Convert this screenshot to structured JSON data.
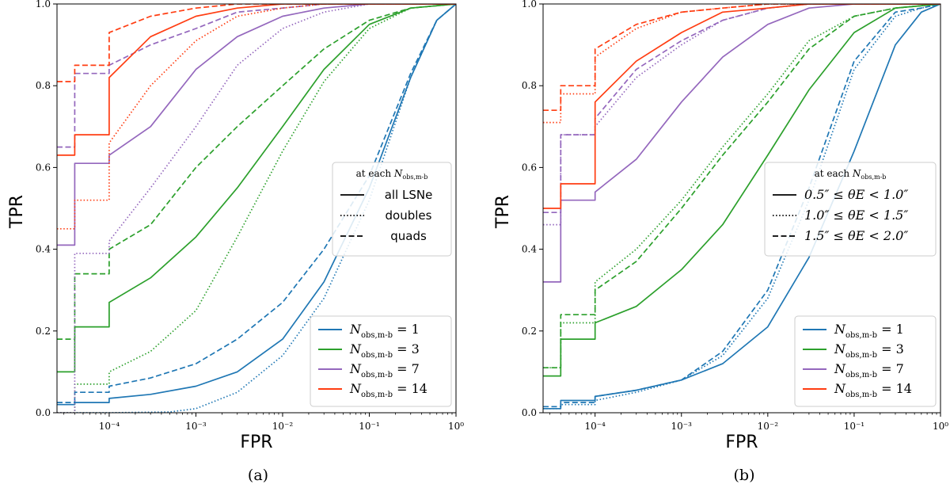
{
  "chart_data": [
    {
      "type": "line",
      "panel": "a",
      "caption": "(a)",
      "xlabel": "FPR",
      "ylabel": "TPR",
      "xscale": "log",
      "xlim": [
        2.5e-05,
        1.0
      ],
      "ylim": [
        0.0,
        1.0
      ],
      "xticks": [
        "10⁻⁴",
        "10⁻³",
        "10⁻²",
        "10⁻¹",
        "10⁰"
      ],
      "yticks": [
        "0.0",
        "0.2",
        "0.4",
        "0.6",
        "0.8",
        "1.0"
      ],
      "color_legend": {
        "placement": "lower right",
        "entries": [
          {
            "label": "Nobs,m-b = 1",
            "color": "#1f77b4"
          },
          {
            "label": "Nobs,m-b = 3",
            "color": "#2ca02c"
          },
          {
            "label": "Nobs,m-b = 7",
            "color": "#9467bd"
          },
          {
            "label": "Nobs,m-b = 14",
            "color": "#ff3d12"
          }
        ]
      },
      "style_legend": {
        "placement": "center right",
        "title": "at each Nobs,m-b",
        "entries": [
          {
            "label": "all LSNe",
            "dash": "solid"
          },
          {
            "label": "doubles",
            "dash": "dotted"
          },
          {
            "label": "quads",
            "dash": "dashed"
          }
        ]
      },
      "series": [
        {
          "name": "N=1 all LSNe",
          "color": "#1f77b4",
          "dash": "solid",
          "x": [
            2.5e-05,
            4e-05,
            0.0001,
            0.0003,
            0.001,
            0.003,
            0.01,
            0.03,
            0.1,
            0.3,
            0.6,
            1.0
          ],
          "y": [
            0.02,
            0.025,
            0.035,
            0.045,
            0.065,
            0.1,
            0.18,
            0.32,
            0.55,
            0.82,
            0.96,
            1.0
          ]
        },
        {
          "name": "N=1 doubles",
          "color": "#1f77b4",
          "dash": "dotted",
          "x": [
            2.5e-05,
            0.0001,
            0.0005,
            0.001,
            0.003,
            0.01,
            0.03,
            0.1,
            0.3,
            0.6,
            1.0
          ],
          "y": [
            0.0,
            0.0,
            0.002,
            0.01,
            0.05,
            0.14,
            0.28,
            0.52,
            0.82,
            0.96,
            1.0
          ]
        },
        {
          "name": "N=1 quads",
          "color": "#1f77b4",
          "dash": "dashed",
          "x": [
            2.5e-05,
            4e-05,
            0.0001,
            0.0003,
            0.001,
            0.003,
            0.01,
            0.03,
            0.1,
            0.3,
            0.6,
            1.0
          ],
          "y": [
            0.025,
            0.05,
            0.065,
            0.085,
            0.12,
            0.18,
            0.27,
            0.4,
            0.58,
            0.83,
            0.96,
            1.0
          ]
        },
        {
          "name": "N=3 all LSNe",
          "color": "#2ca02c",
          "dash": "solid",
          "x": [
            2.5e-05,
            4e-05,
            0.0001,
            0.0003,
            0.001,
            0.003,
            0.01,
            0.03,
            0.1,
            0.3,
            1.0
          ],
          "y": [
            0.1,
            0.21,
            0.27,
            0.33,
            0.43,
            0.55,
            0.7,
            0.84,
            0.95,
            0.99,
            1.0
          ]
        },
        {
          "name": "N=3 doubles",
          "color": "#2ca02c",
          "dash": "dotted",
          "x": [
            2.5e-05,
            4e-05,
            0.0001,
            0.0003,
            0.001,
            0.003,
            0.01,
            0.03,
            0.1,
            0.3,
            1.0
          ],
          "y": [
            0.0,
            0.07,
            0.1,
            0.15,
            0.25,
            0.43,
            0.64,
            0.81,
            0.94,
            0.99,
            1.0
          ]
        },
        {
          "name": "N=3 quads",
          "color": "#2ca02c",
          "dash": "dashed",
          "x": [
            2.5e-05,
            4e-05,
            0.0001,
            0.0003,
            0.001,
            0.003,
            0.01,
            0.03,
            0.1,
            0.3,
            1.0
          ],
          "y": [
            0.18,
            0.34,
            0.4,
            0.46,
            0.6,
            0.7,
            0.8,
            0.89,
            0.96,
            0.99,
            1.0
          ]
        },
        {
          "name": "N=7 all LSNe",
          "color": "#9467bd",
          "dash": "solid",
          "x": [
            2.5e-05,
            4e-05,
            0.0001,
            0.0003,
            0.001,
            0.003,
            0.01,
            0.03,
            0.1,
            0.3,
            1.0
          ],
          "y": [
            0.41,
            0.61,
            0.63,
            0.7,
            0.84,
            0.92,
            0.97,
            0.99,
            1.0,
            1.0,
            1.0
          ]
        },
        {
          "name": "N=7 doubles",
          "color": "#9467bd",
          "dash": "dotted",
          "x": [
            2.5e-05,
            4e-05,
            0.0001,
            0.0003,
            0.001,
            0.003,
            0.01,
            0.03,
            0.1,
            0.3,
            1.0
          ],
          "y": [
            0.0,
            0.39,
            0.42,
            0.55,
            0.7,
            0.85,
            0.94,
            0.98,
            1.0,
            1.0,
            1.0
          ]
        },
        {
          "name": "N=7 quads",
          "color": "#9467bd",
          "dash": "dashed",
          "x": [
            2.5e-05,
            4e-05,
            0.0001,
            0.0003,
            0.001,
            0.003,
            0.01,
            0.03,
            0.1,
            0.3,
            1.0
          ],
          "y": [
            0.65,
            0.83,
            0.85,
            0.9,
            0.94,
            0.98,
            0.99,
            1.0,
            1.0,
            1.0,
            1.0
          ]
        },
        {
          "name": "N=14 all LSNe",
          "color": "#ff3d12",
          "dash": "solid",
          "x": [
            2.5e-05,
            4e-05,
            0.0001,
            0.0003,
            0.001,
            0.003,
            0.01,
            0.03,
            0.1,
            0.3,
            1.0
          ],
          "y": [
            0.63,
            0.68,
            0.82,
            0.92,
            0.97,
            0.99,
            1.0,
            1.0,
            1.0,
            1.0,
            1.0
          ]
        },
        {
          "name": "N=14 doubles",
          "color": "#ff3d12",
          "dash": "dotted",
          "x": [
            2.5e-05,
            4e-05,
            0.0001,
            0.0003,
            0.001,
            0.003,
            0.01,
            0.03,
            0.1,
            0.3,
            1.0
          ],
          "y": [
            0.45,
            0.52,
            0.66,
            0.8,
            0.91,
            0.97,
            0.99,
            1.0,
            1.0,
            1.0,
            1.0
          ]
        },
        {
          "name": "N=14 quads",
          "color": "#ff3d12",
          "dash": "dashed",
          "x": [
            2.5e-05,
            4e-05,
            0.0001,
            0.0003,
            0.001,
            0.003,
            0.01,
            0.03,
            0.1,
            0.3,
            1.0
          ],
          "y": [
            0.81,
            0.85,
            0.93,
            0.97,
            0.99,
            1.0,
            1.0,
            1.0,
            1.0,
            1.0,
            1.0
          ]
        }
      ]
    },
    {
      "type": "line",
      "panel": "b",
      "caption": "(b)",
      "xlabel": "FPR",
      "ylabel": "TPR",
      "xscale": "log",
      "xlim": [
        2.5e-05,
        1.0
      ],
      "ylim": [
        0.0,
        1.0
      ],
      "xticks": [
        "10⁻⁴",
        "10⁻³",
        "10⁻²",
        "10⁻¹",
        "10⁰"
      ],
      "yticks": [
        "0.0",
        "0.2",
        "0.4",
        "0.6",
        "0.8",
        "1.0"
      ],
      "color_legend": {
        "placement": "lower right",
        "entries": [
          {
            "label": "Nobs,m-b = 1",
            "color": "#1f77b4"
          },
          {
            "label": "Nobs,m-b = 3",
            "color": "#2ca02c"
          },
          {
            "label": "Nobs,m-b = 7",
            "color": "#9467bd"
          },
          {
            "label": "Nobs,m-b = 14",
            "color": "#ff3d12"
          }
        ]
      },
      "style_legend": {
        "placement": "center right",
        "title": "at each Nobs,m-b",
        "entries": [
          {
            "label": "0.5″ ≤ θE < 1.0″",
            "dash": "solid"
          },
          {
            "label": "1.0″ ≤ θE < 1.5″",
            "dash": "dotted"
          },
          {
            "label": "1.5″ ≤ θE < 2.0″",
            "dash": "dashed"
          }
        ]
      },
      "series": [
        {
          "name": "N=1 0.5-1.0",
          "color": "#1f77b4",
          "dash": "solid",
          "x": [
            2.5e-05,
            4e-05,
            0.0001,
            0.0003,
            0.001,
            0.003,
            0.01,
            0.03,
            0.1,
            0.3,
            0.6,
            1.0
          ],
          "y": [
            0.01,
            0.03,
            0.04,
            0.055,
            0.08,
            0.12,
            0.21,
            0.38,
            0.64,
            0.9,
            0.98,
            1.0
          ]
        },
        {
          "name": "N=1 1.0-1.5",
          "color": "#1f77b4",
          "dash": "dotted",
          "x": [
            2.5e-05,
            4e-05,
            0.0001,
            0.0003,
            0.001,
            0.003,
            0.01,
            0.03,
            0.1,
            0.3,
            0.6,
            1.0
          ],
          "y": [
            0.01,
            0.02,
            0.03,
            0.05,
            0.08,
            0.14,
            0.28,
            0.52,
            0.84,
            0.97,
            0.99,
            1.0
          ]
        },
        {
          "name": "N=1 1.5-2.0",
          "color": "#1f77b4",
          "dash": "dashed",
          "x": [
            2.5e-05,
            4e-05,
            0.0001,
            0.0003,
            0.001,
            0.003,
            0.01,
            0.03,
            0.1,
            0.3,
            0.6,
            1.0
          ],
          "y": [
            0.015,
            0.025,
            0.04,
            0.055,
            0.08,
            0.15,
            0.3,
            0.55,
            0.86,
            0.98,
            0.99,
            1.0
          ]
        },
        {
          "name": "N=3 0.5-1.0",
          "color": "#2ca02c",
          "dash": "solid",
          "x": [
            2.5e-05,
            4e-05,
            0.0001,
            0.0003,
            0.001,
            0.003,
            0.01,
            0.03,
            0.1,
            0.3,
            1.0
          ],
          "y": [
            0.09,
            0.18,
            0.22,
            0.26,
            0.35,
            0.46,
            0.63,
            0.79,
            0.93,
            0.99,
            1.0
          ]
        },
        {
          "name": "N=3 1.0-1.5",
          "color": "#2ca02c",
          "dash": "dotted",
          "x": [
            2.5e-05,
            4e-05,
            0.0001,
            0.0003,
            0.001,
            0.003,
            0.01,
            0.03,
            0.1,
            0.3,
            1.0
          ],
          "y": [
            0.11,
            0.22,
            0.32,
            0.4,
            0.52,
            0.65,
            0.78,
            0.91,
            0.97,
            0.99,
            1.0
          ]
        },
        {
          "name": "N=3 1.5-2.0",
          "color": "#2ca02c",
          "dash": "dashed",
          "x": [
            2.5e-05,
            4e-05,
            0.0001,
            0.0003,
            0.001,
            0.003,
            0.01,
            0.03,
            0.1,
            0.3,
            1.0
          ],
          "y": [
            0.11,
            0.24,
            0.3,
            0.37,
            0.5,
            0.63,
            0.76,
            0.89,
            0.97,
            0.99,
            1.0
          ]
        },
        {
          "name": "N=7 0.5-1.0",
          "color": "#9467bd",
          "dash": "solid",
          "x": [
            2.5e-05,
            4e-05,
            0.0001,
            0.0003,
            0.001,
            0.003,
            0.01,
            0.03,
            0.1,
            0.3,
            1.0
          ],
          "y": [
            0.32,
            0.52,
            0.54,
            0.62,
            0.76,
            0.87,
            0.95,
            0.99,
            1.0,
            1.0,
            1.0
          ]
        },
        {
          "name": "N=7 1.0-1.5",
          "color": "#9467bd",
          "dash": "dotted",
          "x": [
            2.5e-05,
            4e-05,
            0.0001,
            0.0003,
            0.001,
            0.003,
            0.01,
            0.03,
            0.1,
            0.3,
            1.0
          ],
          "y": [
            0.46,
            0.68,
            0.7,
            0.82,
            0.9,
            0.96,
            0.99,
            1.0,
            1.0,
            1.0,
            1.0
          ]
        },
        {
          "name": "N=7 1.5-2.0",
          "color": "#9467bd",
          "dash": "dashed",
          "x": [
            2.5e-05,
            4e-05,
            0.0001,
            0.0003,
            0.001,
            0.003,
            0.01,
            0.03,
            0.1,
            0.3,
            1.0
          ],
          "y": [
            0.49,
            0.68,
            0.72,
            0.84,
            0.91,
            0.96,
            0.99,
            1.0,
            1.0,
            1.0,
            1.0
          ]
        },
        {
          "name": "N=14 0.5-1.0",
          "color": "#ff3d12",
          "dash": "solid",
          "x": [
            2.5e-05,
            4e-05,
            0.0001,
            0.0003,
            0.001,
            0.003,
            0.01,
            0.03,
            0.1,
            0.3,
            1.0
          ],
          "y": [
            0.5,
            0.56,
            0.76,
            0.86,
            0.93,
            0.98,
            0.99,
            1.0,
            1.0,
            1.0,
            1.0
          ]
        },
        {
          "name": "N=14 1.0-1.5",
          "color": "#ff3d12",
          "dash": "dotted",
          "x": [
            2.5e-05,
            4e-05,
            0.0001,
            0.0003,
            0.001,
            0.003,
            0.01,
            0.03,
            0.1,
            0.3,
            1.0
          ],
          "y": [
            0.71,
            0.78,
            0.87,
            0.94,
            0.98,
            0.99,
            1.0,
            1.0,
            1.0,
            1.0,
            1.0
          ]
        },
        {
          "name": "N=14 1.5-2.0",
          "color": "#ff3d12",
          "dash": "dashed",
          "x": [
            2.5e-05,
            4e-05,
            0.0001,
            0.0003,
            0.001,
            0.003,
            0.01,
            0.03,
            0.1,
            0.3,
            1.0
          ],
          "y": [
            0.74,
            0.8,
            0.89,
            0.95,
            0.98,
            0.99,
            1.0,
            1.0,
            1.0,
            1.0,
            1.0
          ]
        }
      ]
    }
  ]
}
